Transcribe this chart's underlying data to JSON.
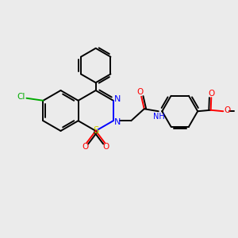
{
  "bg_color": "#ebebeb",
  "bond_color": "#000000",
  "N_color": "#0000ff",
  "S_color": "#cccc00",
  "O_color": "#ff0000",
  "Cl_color": "#00aa00",
  "lw": 1.4,
  "fs": 7.5,
  "xlim": [
    0,
    10
  ],
  "ylim": [
    0,
    10
  ]
}
